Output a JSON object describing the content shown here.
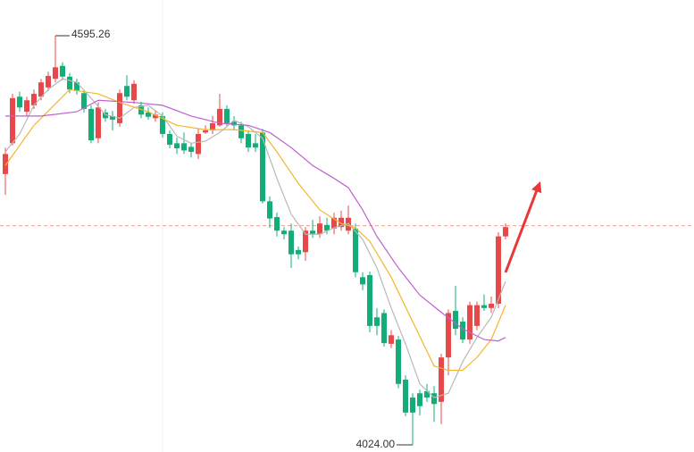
{
  "chart_data": {
    "type": "candlestick",
    "up_color": "#e8484a",
    "down_color": "#13ad78",
    "ylim": [
      4014,
      4645
    ],
    "price_line": 4330,
    "price_line_color": "#f2a08c",
    "annotations": [
      {
        "text": "4595.26"
      },
      {
        "text": "4024.00"
      }
    ],
    "open": [
      4402,
      4445,
      4510,
      4489,
      4498,
      4510,
      4523,
      4535,
      4553,
      4538,
      4530,
      4515,
      4493,
      4452,
      4488,
      4483,
      4473,
      4525,
      4505,
      4498,
      4488,
      4480,
      4483,
      4458,
      4445,
      4445,
      4440,
      4430,
      4460,
      4463,
      4470,
      4493,
      4475,
      4470,
      4458,
      4445,
      4460,
      4364,
      4342,
      4323,
      4323,
      4296,
      4293,
      4323,
      4318,
      4331,
      4326,
      4328,
      4323,
      4326,
      4258,
      4261,
      4202,
      4208,
      4165,
      4171,
      4115,
      4090,
      4096,
      4099,
      4096,
      4084,
      4146,
      4211,
      4196,
      4171,
      4190,
      4219,
      4215,
      4221,
      4315
    ],
    "high": [
      4439,
      4514,
      4517,
      4510,
      4520,
      4535,
      4545,
      4595.26,
      4558,
      4543,
      4535,
      4520,
      4498,
      4502,
      4493,
      4490,
      4520,
      4540,
      4533,
      4503,
      4495,
      4490,
      4488,
      4463,
      4453,
      4460,
      4445,
      4465,
      4470,
      4483,
      4514,
      4498,
      4483,
      4475,
      4463,
      4458,
      4465,
      4371,
      4348,
      4328,
      4333,
      4301,
      4328,
      4338,
      4343,
      4341,
      4348,
      4351,
      4358,
      4333,
      4265,
      4266,
      4215,
      4213,
      4184,
      4176,
      4121,
      4096,
      4101,
      4109,
      4106,
      4151,
      4213,
      4246,
      4202,
      4224,
      4224,
      4234,
      4231,
      4321,
      4333
    ],
    "low": [
      4373,
      4442,
      4489,
      4483,
      4493,
      4505,
      4518,
      4530,
      4533,
      4515,
      4513,
      4488,
      4445,
      4445,
      4475,
      4463,
      4468,
      4505,
      4500,
      4480,
      4478,
      4475,
      4453,
      4438,
      4430,
      4430,
      4425,
      4423,
      4458,
      4458,
      4468,
      4468,
      4463,
      4445,
      4433,
      4433,
      4361,
      4327,
      4315,
      4311,
      4271,
      4283,
      4281,
      4313,
      4313,
      4318,
      4318,
      4323,
      4318,
      4258,
      4240,
      4181,
      4177,
      4161,
      4159,
      4103,
      4064,
      4024,
      4065,
      4084,
      4056,
      4053,
      4121,
      4177,
      4166,
      4165,
      4184,
      4211,
      4208,
      4215,
      4311
    ],
    "close": [
      4430,
      4508,
      4495,
      4505,
      4514,
      4530,
      4539,
      4551,
      4538,
      4520,
      4518,
      4493,
      4449,
      4495,
      4480,
      4478,
      4515,
      4510,
      4528,
      4485,
      4482,
      4485,
      4458,
      4443,
      4438,
      4435,
      4433,
      4458,
      4463,
      4473,
      4493,
      4473,
      4470,
      4452,
      4439,
      4439,
      4364,
      4340,
      4323,
      4318,
      4290,
      4290,
      4323,
      4318,
      4333,
      4323,
      4341,
      4341,
      4341,
      4265,
      4248,
      4190,
      4190,
      4166,
      4177,
      4109,
      4069,
      4069,
      4078,
      4090,
      4081,
      4146,
      4208,
      4186,
      4171,
      4219,
      4219,
      4215,
      4221,
      4315,
      4328
    ],
    "lines": [
      {
        "color": "#b8b8b8",
        "x": [
          0,
          2,
          4,
          6,
          8,
          10,
          12,
          14,
          16,
          18,
          20,
          22,
          24,
          26,
          28,
          30,
          32,
          34,
          36,
          38,
          40,
          42,
          44,
          46,
          48,
          50,
          52,
          54,
          56,
          58,
          60,
          62,
          64,
          66,
          68,
          70
        ],
        "values": [
          4433,
          4458,
          4498,
          4520,
          4535,
          4530,
          4508,
          4485,
          4480,
          4495,
          4498,
          4483,
          4455,
          4445,
          4448,
          4460,
          4477,
          4468,
          4452,
          4396,
          4346,
          4318,
          4318,
          4327,
          4333,
          4311,
          4271,
          4215,
          4165,
          4109,
          4090,
          4096,
          4140,
          4174,
          4202,
          4252
        ]
      },
      {
        "color": "#f4b52c",
        "x": [
          0,
          4,
          9,
          13,
          16,
          20,
          24,
          28,
          32,
          36,
          38,
          41,
          44,
          47,
          49,
          51,
          54,
          57,
          60,
          62,
          64,
          66,
          68,
          70
        ],
        "values": [
          4414,
          4470,
          4520,
          4514,
          4502,
          4489,
          4470,
          4464,
          4464,
          4460,
          4433,
          4389,
          4352,
          4333,
          4327,
          4308,
          4258,
          4196,
          4134,
          4128,
          4128,
          4146,
          4171,
          4219
        ]
      },
      {
        "color": "#c15fd2",
        "x": [
          0,
          5,
          10,
          13,
          18,
          22,
          26,
          30,
          34,
          37,
          40,
          43,
          46,
          48,
          50,
          52,
          55,
          58,
          61,
          64,
          67,
          69,
          70
        ],
        "values": [
          4483,
          4483,
          4489,
          4505,
          4502,
          4498,
          4483,
          4473,
          4470,
          4460,
          4439,
          4414,
          4396,
          4383,
          4352,
          4315,
          4271,
          4233,
          4209,
          4186,
          4171,
          4169,
          4174
        ]
      }
    ]
  }
}
